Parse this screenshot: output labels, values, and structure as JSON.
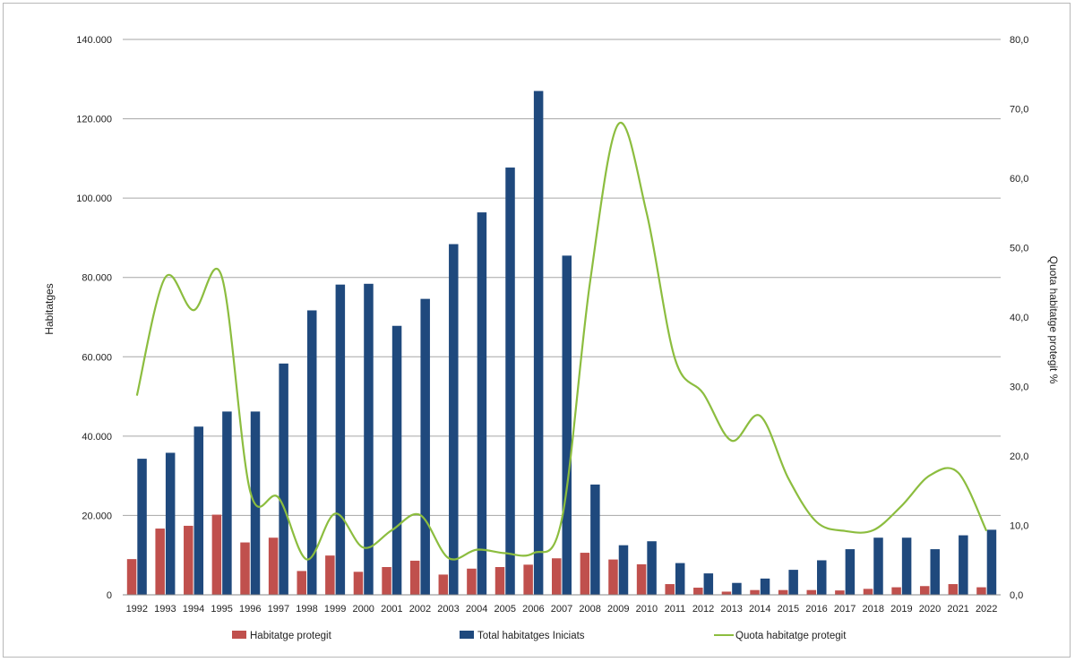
{
  "chart_data": {
    "type": "bar",
    "categories": [
      "1992",
      "1993",
      "1994",
      "1995",
      "1996",
      "1997",
      "1998",
      "1999",
      "2000",
      "2001",
      "2002",
      "2003",
      "2004",
      "2005",
      "2006",
      "2007",
      "2008",
      "2009",
      "2010",
      "2011",
      "2012",
      "2013",
      "2014",
      "2015",
      "2016",
      "2017",
      "2018",
      "2019",
      "2020",
      "2021",
      "2022"
    ],
    "series": [
      {
        "name": "Habitatge protegit",
        "kind": "bar",
        "axis": "left",
        "color": "#c0504d",
        "values": [
          9000,
          16700,
          17400,
          20200,
          13200,
          14400,
          6000,
          9900,
          5800,
          7000,
          8600,
          5100,
          6600,
          7000,
          7600,
          9200,
          10600,
          8900,
          7700,
          2700,
          1800,
          800,
          1200,
          1200,
          1200,
          1100,
          1500,
          1900,
          2200,
          2700,
          1900
        ]
      },
      {
        "name": "Total habitatges Iniciats",
        "kind": "bar",
        "axis": "left",
        "color": "#1f497d",
        "values": [
          34300,
          35800,
          42400,
          46200,
          46200,
          58300,
          71700,
          78200,
          78400,
          67800,
          74600,
          88400,
          96400,
          107700,
          127000,
          85500,
          27800,
          12500,
          13500,
          8000,
          5400,
          3000,
          4100,
          6300,
          8700,
          11500,
          14400,
          14400,
          11500,
          15000,
          16400
        ]
      },
      {
        "name": "Quota habitatge protegit",
        "kind": "line",
        "axis": "right",
        "color": "#8cbd3f",
        "values": [
          28.7,
          45.7,
          41.0,
          45.8,
          14.9,
          14.0,
          5.1,
          11.7,
          6.8,
          9.3,
          11.5,
          5.3,
          6.5,
          6.0,
          6.0,
          10.8,
          45.0,
          67.8,
          55.0,
          34.0,
          29.0,
          22.2,
          25.8,
          16.8,
          10.5,
          9.2,
          9.3,
          12.8,
          17.2,
          17.6,
          9.2
        ]
      }
    ],
    "yaxis_left": {
      "label": "Habitatges",
      "min": 0,
      "max": 140000,
      "ticks": [
        "0",
        "20.000",
        "40.000",
        "60.000",
        "80.000",
        "100.000",
        "120.000",
        "140.000"
      ],
      "tick_values": [
        0,
        20000,
        40000,
        60000,
        80000,
        100000,
        120000,
        140000
      ]
    },
    "yaxis_right": {
      "label": "Quota habitatge protegit %",
      "min": 0,
      "max": 80,
      "ticks": [
        "0,0",
        "10,0",
        "20,0",
        "30,0",
        "40,0",
        "50,0",
        "60,0",
        "70,0",
        "80,0"
      ],
      "tick_values": [
        0,
        10,
        20,
        30,
        40,
        50,
        60,
        70,
        80
      ]
    },
    "grid": true,
    "legend_position": "bottom"
  }
}
